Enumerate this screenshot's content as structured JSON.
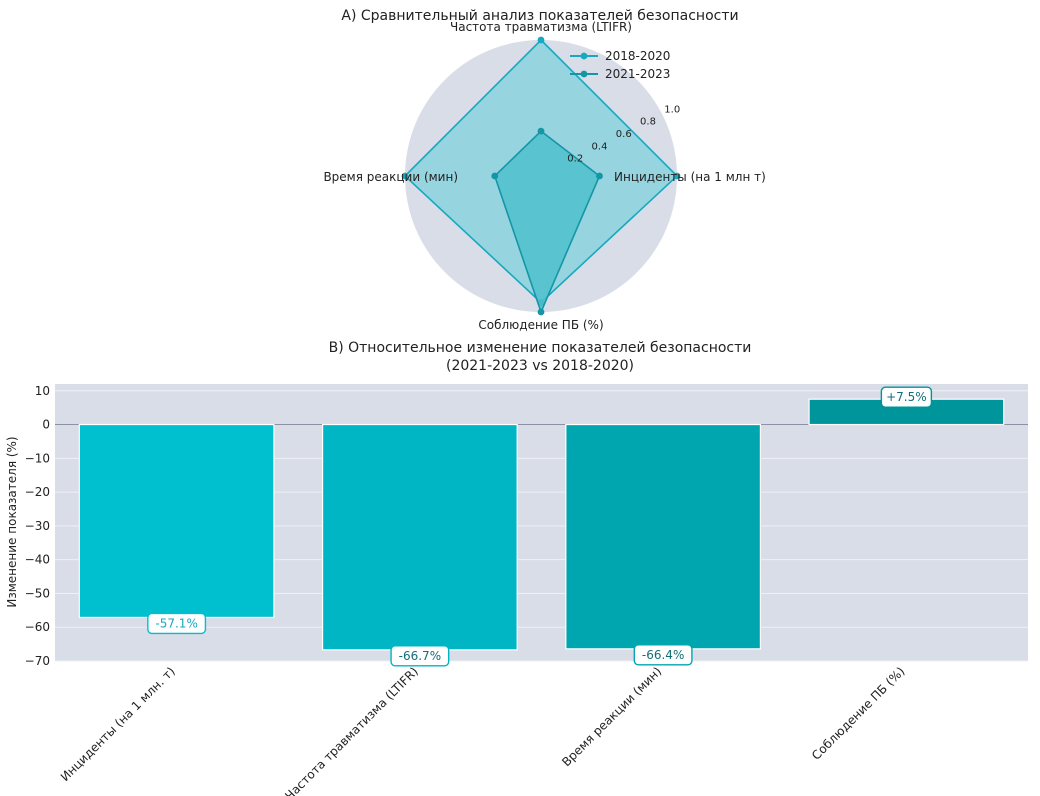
{
  "chart_data": [
    {
      "type": "radar",
      "title": "A) Сравнительный анализ показателей безопасности",
      "axes": [
        "Частота травматизма (LTIFR)",
        "Инциденты (на 1 млн т)",
        "Соблюдение ПБ (%)",
        "Время реакции (мин)"
      ],
      "radial_ticks": [
        "0.2",
        "0.4",
        "0.6",
        "0.8",
        "1.0"
      ],
      "rlim": [
        0,
        1.0
      ],
      "legend_position": "top-right",
      "series": [
        {
          "name": "2018-2020",
          "values": [
            1.0,
            1.0,
            0.93,
            1.0
          ],
          "color": "#17a9bf"
        },
        {
          "name": "2021-2023",
          "values": [
            0.33,
            0.43,
            1.0,
            0.34
          ],
          "color": "#1596a6"
        }
      ]
    },
    {
      "type": "bar",
      "title": "B) Относительное изменение показателей безопасности",
      "subtitle": "(2021-2023 vs 2018-2020)",
      "ylabel": "Изменение показателя (%)",
      "categories": [
        "Инциденты (на 1 млн. т)",
        "Частота травматизма (LTIFR)",
        "Время реакции (мин)",
        "Соблюдение ПБ (%)"
      ],
      "values": [
        -57.1,
        -66.7,
        -66.4,
        7.5
      ],
      "data_labels": [
        "-57.1%",
        "-66.7%",
        "-66.4%",
        "+7.5%"
      ],
      "colors": [
        "#00bfcf",
        "#00b5c4",
        "#00a6af",
        "#00959a"
      ],
      "ylim": [
        -70,
        12
      ],
      "yticks": [
        10,
        0,
        -10,
        -20,
        -30,
        -40,
        -50,
        -60,
        -70
      ],
      "ytick_labels": [
        "10",
        "0",
        "−10",
        "−20",
        "−30",
        "−40",
        "−50",
        "−60",
        "−70"
      ],
      "grid": true
    }
  ]
}
